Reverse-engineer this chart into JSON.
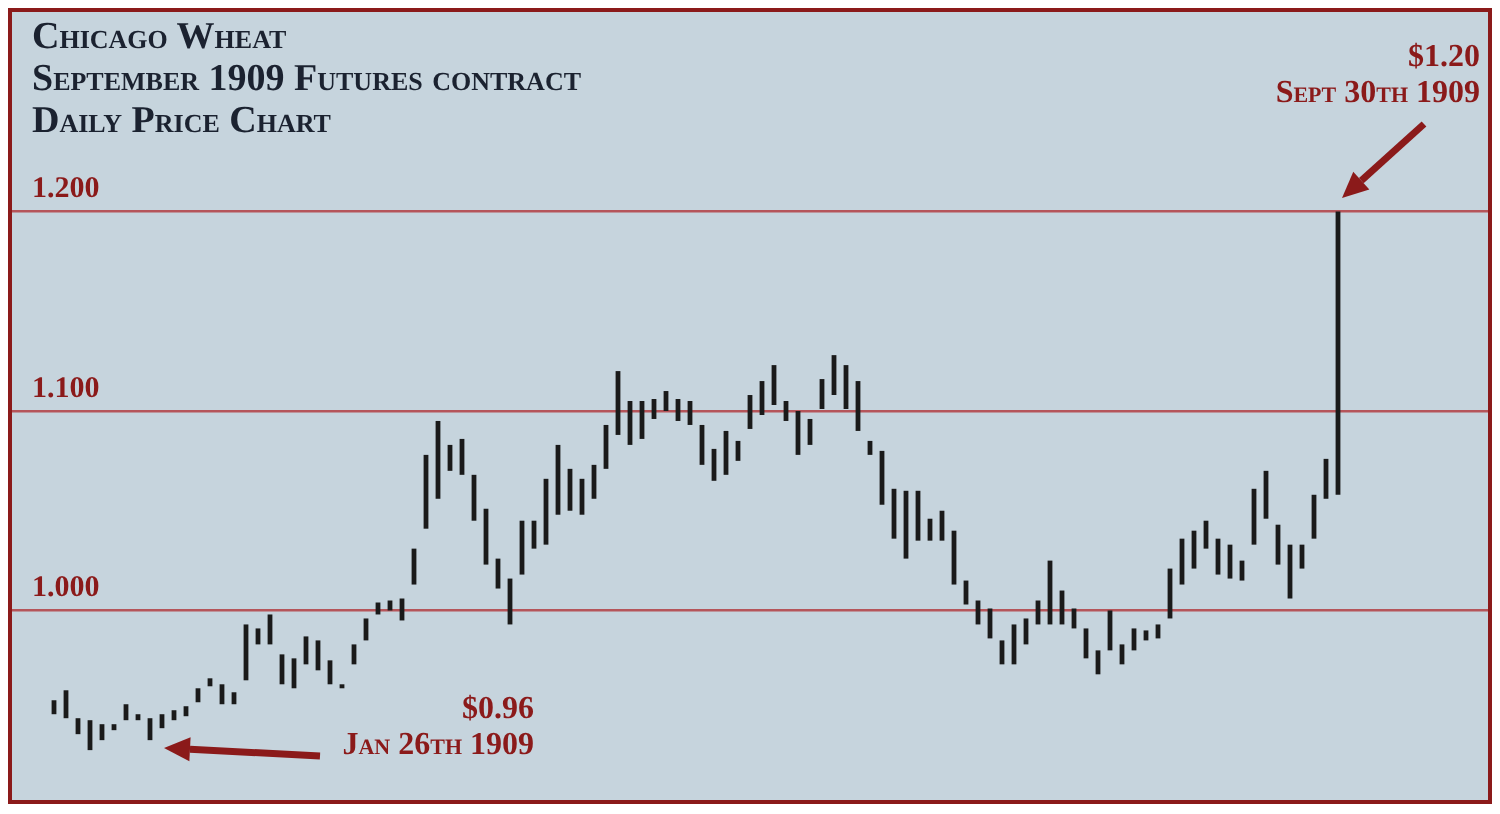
{
  "chart_data": {
    "type": "bar",
    "title": "Chicago Wheat",
    "subtitle": "September 1909  Futures contract\nDaily Price Chart",
    "annotations": [
      "$0.96\nJan 26th 1909",
      "$1.20\nSept 30th 1909"
    ],
    "categories": [
      null,
      null,
      null,
      null,
      null,
      null,
      null,
      null,
      null,
      null,
      null,
      null,
      null,
      null,
      null,
      null,
      null,
      null,
      null,
      null,
      null,
      null,
      null,
      null,
      null,
      null,
      null,
      null,
      null,
      null,
      null,
      null,
      null,
      null,
      null,
      null,
      null,
      null,
      null,
      null,
      null,
      null,
      null,
      null,
      null,
      null,
      null,
      null,
      null,
      null,
      null,
      null,
      null,
      null,
      null,
      null,
      null,
      null,
      null,
      null,
      null,
      null,
      null,
      null,
      null,
      null,
      null,
      null,
      null,
      null,
      null,
      null,
      null,
      null,
      null,
      null,
      null,
      null,
      null,
      null,
      null,
      null,
      null,
      null,
      null,
      null,
      null,
      null,
      null,
      null,
      null,
      null,
      null,
      null,
      null,
      null,
      null,
      null,
      null,
      null,
      null,
      null,
      null,
      null,
      null,
      null,
      null,
      null,
      null,
      null,
      null,
      null,
      null,
      null,
      null,
      null,
      null,
      null,
      null,
      null,
      null,
      null,
      null
    ],
    "base": [
      null,
      null,
      null,
      0.948,
      0.946,
      0.938,
      0.93,
      0.935,
      0.94,
      0.945,
      0.945,
      0.935,
      0.941,
      0.945,
      0.947,
      0.954,
      0.962,
      0.953,
      0.953,
      0.965,
      0.983,
      0.983,
      0.963,
      0.961,
      0.973,
      0.97,
      0.963,
      0.961,
      0.973,
      0.985,
      0.998,
      1.0,
      0.995,
      1.013,
      1.041,
      1.056,
      1.07,
      1.068,
      1.045,
      1.023,
      1.011,
      0.993,
      1.018,
      1.031,
      1.033,
      1.048,
      1.05,
      1.048,
      1.056,
      1.071,
      1.088,
      1.083,
      1.086,
      1.096,
      1.1,
      1.095,
      1.093,
      1.073,
      1.065,
      1.068,
      1.075,
      1.091,
      1.098,
      1.103,
      1.095,
      1.078,
      1.083,
      1.101,
      1.108,
      1.101,
      1.09,
      1.078,
      1.053,
      1.036,
      1.026,
      1.035,
      1.035,
      1.035,
      1.013,
      1.003,
      0.993,
      0.986,
      0.973,
      0.973,
      0.983,
      0.993,
      0.993,
      0.993,
      0.991,
      0.976,
      0.968,
      0.98,
      0.973,
      0.98,
      0.985,
      0.986,
      0.996,
      1.013,
      1.021,
      1.031,
      1.018,
      1.016,
      1.015,
      1.033,
      1.046,
      1.023,
      1.006,
      1.021,
      1.036,
      1.056,
      1.058,
      null,
      null,
      null,
      null,
      null,
      null,
      null,
      null,
      null,
      null,
      null,
      null
    ],
    "values": [
      null,
      null,
      null,
      0.007,
      0.014,
      0.008,
      0.015,
      0.008,
      0.003,
      0.008,
      0.003,
      0.011,
      0.007,
      0.005,
      0.005,
      0.007,
      0.004,
      0.01,
      0.006,
      0.028,
      0.008,
      0.015,
      0.015,
      0.015,
      0.014,
      0.015,
      0.012,
      0.002,
      0.01,
      0.011,
      0.006,
      0.005,
      0.011,
      0.018,
      0.037,
      0.039,
      0.013,
      0.018,
      0.023,
      0.028,
      0.015,
      0.023,
      0.027,
      0.014,
      0.033,
      0.035,
      0.021,
      0.018,
      0.017,
      0.022,
      0.032,
      0.022,
      0.019,
      0.01,
      0.01,
      0.011,
      0.012,
      0.02,
      0.016,
      0.022,
      0.01,
      0.017,
      0.017,
      0.02,
      0.01,
      0.022,
      0.013,
      0.015,
      0.02,
      0.022,
      0.025,
      0.007,
      0.027,
      0.025,
      0.034,
      0.025,
      0.011,
      0.015,
      0.027,
      0.012,
      0.012,
      0.015,
      0.012,
      0.02,
      0.013,
      0.012,
      0.032,
      0.017,
      0.01,
      0.015,
      0.012,
      0.02,
      0.01,
      0.011,
      0.005,
      0.007,
      0.025,
      0.023,
      0.019,
      0.014,
      0.018,
      0.017,
      0.01,
      0.028,
      0.024,
      0.02,
      0.027,
      0.012,
      0.022,
      0.02,
      0.142,
      null,
      null,
      null,
      null,
      null,
      null,
      null,
      null,
      null,
      null,
      null,
      null
    ],
    "color": "#1a1a1a",
    "ylim": [
      0.905,
      1.3
    ],
    "yticks": [
      {
        "value": 1.0,
        "label": "1.000"
      },
      {
        "value": 1.1,
        "label": "1.100"
      },
      {
        "value": 1.2,
        "label": "1.200"
      }
    ],
    "grid": "y",
    "tick_labels": "y"
  }
}
